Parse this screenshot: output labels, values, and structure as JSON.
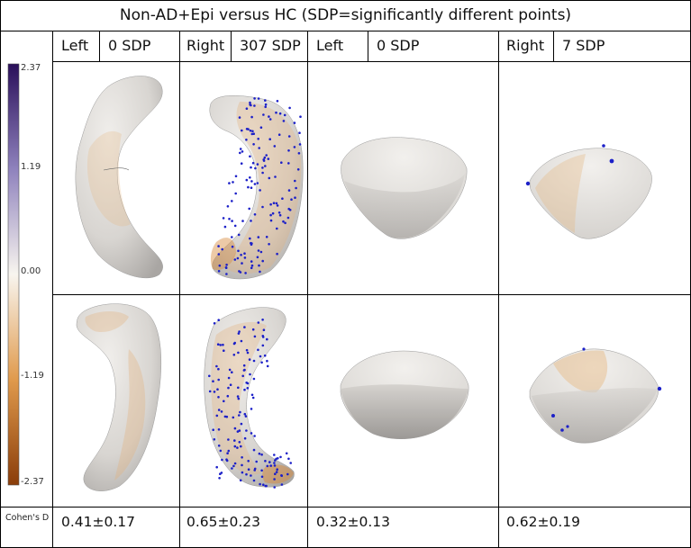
{
  "figure": {
    "title": "Non-AD+Epi versus HC (SDP=significantly different points)"
  },
  "columns": [
    {
      "side": "Left",
      "sdp": "0 SDP",
      "structure": "hippocampus",
      "cohens_d": "0.41±0.17"
    },
    {
      "side": "Right",
      "sdp": "307 SDP",
      "structure": "hippocampus",
      "cohens_d": "0.65±0.23"
    },
    {
      "side": "Left",
      "sdp": "0 SDP",
      "structure": "amygdala",
      "cohens_d": "0.32±0.13"
    },
    {
      "side": "Right",
      "sdp": "7 SDP",
      "structure": "amygdala",
      "cohens_d": "0.62±0.19"
    }
  ],
  "colorbar": {
    "ticks": [
      "2.37",
      "1.19",
      "0.00",
      "-1.19",
      "-2.37"
    ],
    "colors": {
      "max": "#2a0f5a",
      "mid": "#f8f5ef",
      "min": "#8a3d0a"
    }
  },
  "row_label": "Cohen's D",
  "colors": {
    "surface": "#dcdad7",
    "orange_tint": "#e3b37f",
    "point": "#1c20c8",
    "grid": "#000000"
  }
}
